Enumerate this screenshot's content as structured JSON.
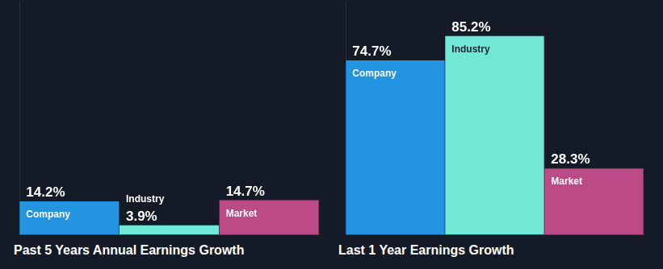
{
  "chart_data": [
    {
      "type": "bar",
      "title": "Past 5 Years Annual Earnings Growth",
      "categories": [
        "Company",
        "Industry",
        "Market"
      ],
      "values": [
        14.2,
        3.9,
        14.7
      ],
      "value_labels": [
        "14.2%",
        "3.9%",
        "14.7%"
      ],
      "colors": [
        "#2394df",
        "#71e8d6",
        "#bb4a87"
      ],
      "ylim": [
        0,
        100
      ],
      "data_labels": true,
      "tick_labels": false,
      "grid": false
    },
    {
      "type": "bar",
      "title": "Last 1 Year Earnings Growth",
      "categories": [
        "Company",
        "Industry",
        "Market"
      ],
      "values": [
        74.7,
        85.2,
        28.3
      ],
      "value_labels": [
        "74.7%",
        "85.2%",
        "28.3%"
      ],
      "colors": [
        "#2394df",
        "#71e8d6",
        "#bb4a87"
      ],
      "ylim": [
        0,
        100
      ],
      "data_labels": true,
      "tick_labels": false,
      "grid": false
    }
  ]
}
